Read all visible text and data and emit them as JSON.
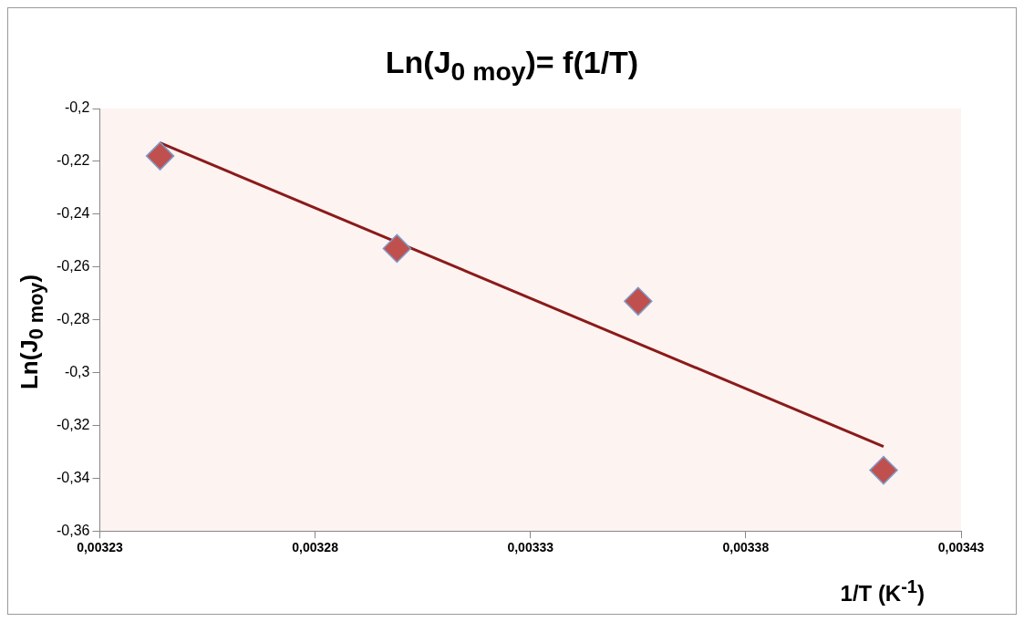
{
  "chart_data": {
    "type": "scatter",
    "title": "Ln(J$_{0 moy}$)= f(1/T)",
    "xlabel": "1/T (K$^{-1}$)",
    "ylabel": "Ln(J$_{0 moy}$)",
    "series": [
      {
        "type": "scatter",
        "color": "#c0504d",
        "x": [
          0.003244,
          0.003299,
          0.003355,
          0.003412
        ],
        "values": [
          -0.218,
          -0.253,
          -0.273,
          -0.337
        ],
        "marker": "diamond"
      },
      {
        "type": "line",
        "color": "#8b1a1a",
        "x": [
          0.003244,
          0.003412
        ],
        "values": [
          -0.213,
          -0.328
        ],
        "marker": "none"
      }
    ],
    "xlim": [
      0.00323,
      0.00343
    ],
    "xticks": [
      {
        "value": 0.00323,
        "label": "0,00323"
      },
      {
        "value": 0.00328,
        "label": "0,00328"
      },
      {
        "value": 0.00333,
        "label": "0,00333"
      },
      {
        "value": 0.00338,
        "label": "0,00338"
      },
      {
        "value": 0.00343,
        "label": "0,00343"
      }
    ],
    "ylim": [
      -0.36,
      -0.2
    ],
    "yticks": [
      {
        "value": -0.36,
        "label": "-0,36"
      },
      {
        "value": -0.34,
        "label": "-0,34"
      },
      {
        "value": -0.32,
        "label": "-0,32"
      },
      {
        "value": -0.3,
        "label": "-0,3"
      },
      {
        "value": -0.28,
        "label": "-0,28"
      },
      {
        "value": -0.26,
        "label": "-0,26"
      },
      {
        "value": -0.24,
        "label": "-0,24"
      },
      {
        "value": -0.22,
        "label": "-0,22"
      },
      {
        "value": -0.2,
        "label": "-0,2"
      }
    ],
    "grid": false,
    "legend": false
  }
}
